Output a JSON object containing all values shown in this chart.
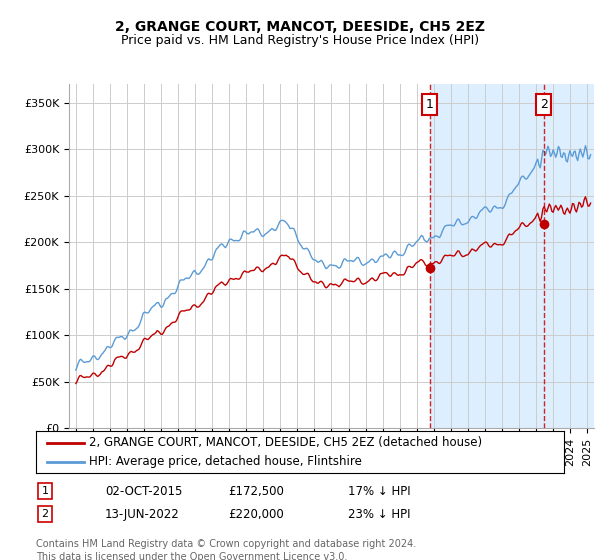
{
  "title": "2, GRANGE COURT, MANCOT, DEESIDE, CH5 2EZ",
  "subtitle": "Price paid vs. HM Land Registry's House Price Index (HPI)",
  "ylabel_ticks": [
    "£0",
    "£50K",
    "£100K",
    "£150K",
    "£200K",
    "£250K",
    "£300K",
    "£350K"
  ],
  "ylim": [
    0,
    370000
  ],
  "yticks": [
    0,
    50000,
    100000,
    150000,
    200000,
    250000,
    300000,
    350000
  ],
  "sale1_x": 2015.75,
  "sale1_price": 172500,
  "sale1_date_str": "02-OCT-2015",
  "sale1_pct": "17% ↓ HPI",
  "sale2_x": 2022.45,
  "sale2_price": 220000,
  "sale2_date_str": "13-JUN-2022",
  "sale2_pct": "23% ↓ HPI",
  "legend1_label": "2, GRANGE COURT, MANCOT, DEESIDE, CH5 2EZ (detached house)",
  "legend2_label": "HPI: Average price, detached house, Flintshire",
  "footer": "Contains HM Land Registry data © Crown copyright and database right 2024.\nThis data is licensed under the Open Government Licence v3.0.",
  "hpi_color": "#5b9bd5",
  "price_color": "#c00000",
  "shaded_color": "#ddeeff",
  "dashed_color": "#cc0000",
  "box_color": "#cc0000",
  "grid_color": "#cccccc",
  "bg_color": "#ffffff",
  "title_fontsize": 10,
  "subtitle_fontsize": 9,
  "tick_fontsize": 8,
  "legend_fontsize": 8.5,
  "footer_fontsize": 7,
  "xlim_left": 1994.6,
  "xlim_right": 2025.4
}
